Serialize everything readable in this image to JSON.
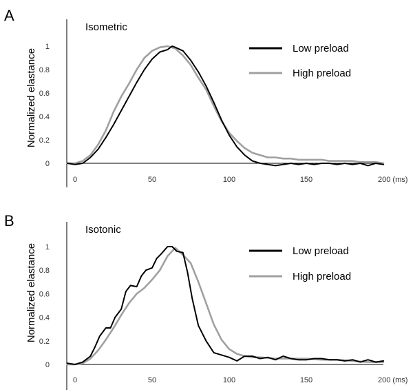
{
  "colors": {
    "low_preload": "#000000",
    "high_preload": "#a0a0a0",
    "axis": "#000000"
  },
  "chart_data": [
    {
      "type": "line",
      "panel": "A",
      "title": "Isometric",
      "xlabel": "",
      "ylabel": "Normalized elastance",
      "xlim": [
        -5,
        200
      ],
      "ylim": [
        -0.05,
        1.2
      ],
      "x_ticks": [
        0,
        50,
        100,
        150,
        200
      ],
      "x_tick_labels": [
        "0",
        "50",
        "100",
        "150",
        "200 (ms)"
      ],
      "y_ticks": [
        0,
        0.2,
        0.4,
        0.6,
        0.8,
        1
      ],
      "y_tick_labels": [
        "0",
        "0.2",
        "0.4",
        "0.6",
        "0.8",
        "1"
      ],
      "legend_position": "top-right",
      "series": [
        {
          "name": "Low preload",
          "color": "#000000",
          "x": [
            -5,
            0,
            5,
            10,
            15,
            20,
            25,
            30,
            35,
            40,
            45,
            50,
            55,
            60,
            63,
            65,
            70,
            75,
            80,
            85,
            90,
            95,
            100,
            105,
            110,
            115,
            120,
            125,
            130,
            135,
            140,
            145,
            150,
            155,
            160,
            165,
            170,
            175,
            180,
            185,
            190,
            195,
            200
          ],
          "y": [
            0,
            -0.01,
            0,
            0.05,
            0.12,
            0.22,
            0.33,
            0.45,
            0.57,
            0.69,
            0.8,
            0.89,
            0.95,
            0.97,
            1,
            0.99,
            0.96,
            0.88,
            0.78,
            0.66,
            0.52,
            0.37,
            0.24,
            0.14,
            0.07,
            0.02,
            0,
            -0.01,
            -0.02,
            -0.01,
            0,
            -0.01,
            0,
            -0.01,
            0,
            0,
            -0.01,
            0,
            -0.01,
            0,
            -0.02,
            0,
            -0.01
          ]
        },
        {
          "name": "High preload",
          "color": "#a0a0a0",
          "x": [
            -5,
            0,
            5,
            10,
            15,
            20,
            25,
            30,
            35,
            40,
            45,
            50,
            55,
            60,
            65,
            70,
            75,
            80,
            85,
            90,
            95,
            100,
            105,
            110,
            115,
            120,
            125,
            130,
            135,
            140,
            145,
            150,
            155,
            160,
            165,
            170,
            175,
            180,
            185,
            190,
            195,
            200
          ],
          "y": [
            0,
            0,
            0.02,
            0.07,
            0.16,
            0.28,
            0.44,
            0.57,
            0.68,
            0.8,
            0.9,
            0.96,
            0.99,
            1,
            0.98,
            0.92,
            0.84,
            0.73,
            0.63,
            0.49,
            0.36,
            0.26,
            0.19,
            0.13,
            0.09,
            0.07,
            0.05,
            0.05,
            0.04,
            0.04,
            0.03,
            0.03,
            0.03,
            0.03,
            0.02,
            0.02,
            0.02,
            0.02,
            0.01,
            0.01,
            0.01,
            0
          ]
        }
      ]
    },
    {
      "type": "line",
      "panel": "B",
      "title": "Isotonic",
      "xlabel": "",
      "ylabel": "Normalized elastance",
      "xlim": [
        -5,
        200
      ],
      "ylim": [
        -0.05,
        1.2
      ],
      "x_ticks": [
        0,
        50,
        100,
        150,
        200
      ],
      "x_tick_labels": [
        "0",
        "50",
        "100",
        "150",
        "200 (ms)"
      ],
      "y_ticks": [
        0,
        0.2,
        0.4,
        0.6,
        0.8,
        1
      ],
      "y_tick_labels": [
        "0",
        "0.2",
        "0.4",
        "0.6",
        "0.8",
        "1"
      ],
      "legend_position": "top-right",
      "series": [
        {
          "name": "Low preload",
          "color": "#000000",
          "x": [
            -5,
            0,
            5,
            10,
            13,
            16,
            20,
            23,
            26,
            30,
            33,
            36,
            40,
            43,
            46,
            50,
            53,
            56,
            60,
            63,
            66,
            70,
            73,
            76,
            80,
            85,
            90,
            95,
            100,
            105,
            110,
            115,
            120,
            125,
            130,
            135,
            140,
            145,
            150,
            155,
            160,
            165,
            170,
            175,
            180,
            185,
            190,
            195,
            200
          ],
          "y": [
            0.01,
            0,
            0.02,
            0.07,
            0.15,
            0.24,
            0.31,
            0.31,
            0.4,
            0.47,
            0.62,
            0.67,
            0.66,
            0.75,
            0.8,
            0.82,
            0.9,
            0.94,
            1,
            1,
            0.96,
            0.95,
            0.78,
            0.56,
            0.33,
            0.2,
            0.1,
            0.08,
            0.06,
            0.03,
            0.07,
            0.07,
            0.05,
            0.06,
            0.04,
            0.07,
            0.05,
            0.04,
            0.04,
            0.05,
            0.05,
            0.04,
            0.04,
            0.03,
            0.04,
            0.02,
            0.04,
            0.02,
            0.03
          ]
        },
        {
          "name": "High preload",
          "color": "#a0a0a0",
          "x": [
            -5,
            0,
            5,
            10,
            15,
            20,
            25,
            30,
            35,
            40,
            45,
            50,
            55,
            60,
            65,
            70,
            75,
            80,
            85,
            90,
            95,
            100,
            105,
            110,
            115,
            120,
            130,
            140,
            150,
            160,
            170,
            180,
            190,
            200
          ],
          "y": [
            0,
            0,
            0.01,
            0.05,
            0.12,
            0.21,
            0.31,
            0.42,
            0.52,
            0.6,
            0.65,
            0.72,
            0.8,
            0.92,
            0.99,
            0.93,
            0.86,
            0.7,
            0.52,
            0.34,
            0.21,
            0.13,
            0.09,
            0.07,
            0.06,
            0.06,
            0.05,
            0.05,
            0.05,
            0.04,
            0.04,
            0.03,
            0.02,
            0.02
          ]
        }
      ]
    }
  ]
}
